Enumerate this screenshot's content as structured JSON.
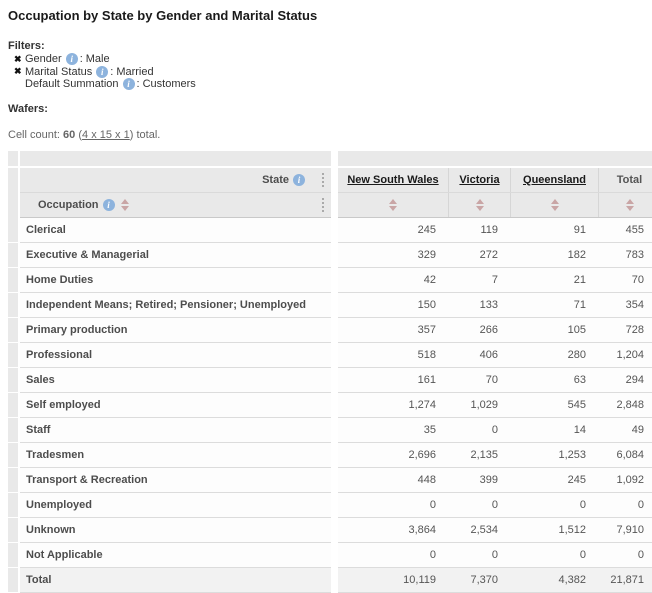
{
  "title": "Occupation by State by Gender and Marital Status",
  "icons": {
    "remove_glyph": "✖",
    "info_glyph": "i"
  },
  "filters": {
    "heading": "Filters:",
    "separator": ":",
    "items": [
      {
        "removable": true,
        "label": "Gender",
        "value": "Male"
      },
      {
        "removable": true,
        "label": "Marital Status",
        "value": "Married"
      },
      {
        "removable": false,
        "label": "Default Summation",
        "value": "Customers"
      }
    ]
  },
  "wafers_heading": "Wafers:",
  "cell_count": {
    "label": "Cell count:",
    "count": "60",
    "open_paren": "(",
    "dims_link": "4 x 15 x 1",
    "close_paren": ")",
    "suffix": "total."
  },
  "table": {
    "col_axis_label": "State",
    "row_axis_label": "Occupation",
    "columns": [
      {
        "label": "New South Wales",
        "link": true
      },
      {
        "label": "Victoria",
        "link": true
      },
      {
        "label": "Queensland",
        "link": true
      },
      {
        "label": "Total",
        "link": false
      }
    ],
    "rows": [
      {
        "label": "Clerical",
        "values": [
          "245",
          "119",
          "91",
          "455"
        ]
      },
      {
        "label": "Executive & Managerial",
        "values": [
          "329",
          "272",
          "182",
          "783"
        ]
      },
      {
        "label": "Home Duties",
        "values": [
          "42",
          "7",
          "21",
          "70"
        ]
      },
      {
        "label": "Independent Means; Retired; Pensioner; Unemployed",
        "values": [
          "150",
          "133",
          "71",
          "354"
        ]
      },
      {
        "label": "Primary production",
        "values": [
          "357",
          "266",
          "105",
          "728"
        ]
      },
      {
        "label": "Professional",
        "values": [
          "518",
          "406",
          "280",
          "1,204"
        ]
      },
      {
        "label": "Sales",
        "values": [
          "161",
          "70",
          "63",
          "294"
        ]
      },
      {
        "label": "Self employed",
        "values": [
          "1,274",
          "1,029",
          "545",
          "2,848"
        ]
      },
      {
        "label": "Staff",
        "values": [
          "35",
          "0",
          "14",
          "49"
        ]
      },
      {
        "label": "Tradesmen",
        "values": [
          "2,696",
          "2,135",
          "1,253",
          "6,084"
        ]
      },
      {
        "label": "Transport & Recreation",
        "values": [
          "448",
          "399",
          "245",
          "1,092"
        ]
      },
      {
        "label": "Unemployed",
        "values": [
          "0",
          "0",
          "0",
          "0"
        ]
      },
      {
        "label": "Unknown",
        "values": [
          "3,864",
          "2,534",
          "1,512",
          "7,910"
        ]
      },
      {
        "label": "Not Applicable",
        "values": [
          "0",
          "0",
          "0",
          "0"
        ]
      },
      {
        "label": "Total",
        "is_total": true,
        "values": [
          "10,119",
          "7,370",
          "4,382",
          "21,871"
        ]
      }
    ]
  },
  "colors": {
    "header_bg": "#e9e9e9",
    "row_border": "#dcdcdc",
    "info_icon_bg": "#8db3dd",
    "sort_icon": "#c9a5a5",
    "total_row_bg": "#f2f2f2"
  }
}
